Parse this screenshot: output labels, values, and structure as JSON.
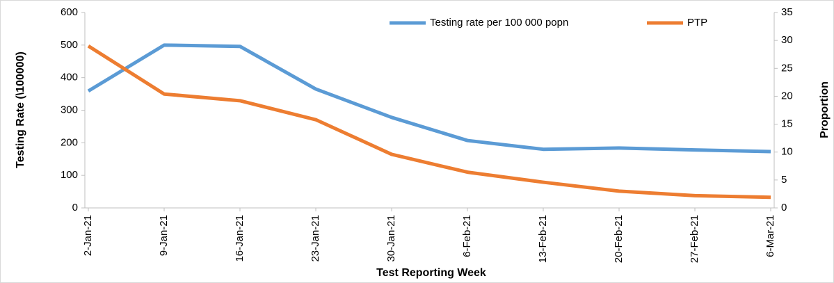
{
  "chart_data": {
    "type": "line",
    "x_label": "Test Reporting Week",
    "y_label": "Testing Rate (\\100000)",
    "y2_label": "Proportion",
    "categories": [
      "2-Jan-21",
      "9-Jan-21",
      "16-Jan-21",
      "23-Jan-21",
      "30-Jan-21",
      "6-Feb-21",
      "13-Feb-21",
      "20-Feb-21",
      "27-Feb-21",
      "6-Mar-21"
    ],
    "series": [
      {
        "name": "Testing rate per 100 000 popn",
        "color": "#5b9bd5",
        "values": [
          359,
          500,
          496,
          365,
          278,
          207,
          180,
          184,
          178,
          173
        ]
      },
      {
        "name": "PTP",
        "color": "#ed7d31",
        "axis": "y2",
        "values": [
          29.0,
          20.4,
          19.2,
          15.8,
          9.6,
          6.4,
          4.6,
          3.0,
          2.2,
          1.9
        ]
      }
    ],
    "ylim": [
      0,
      600
    ],
    "yticks": [
      0,
      100,
      200,
      300,
      400,
      500,
      600
    ],
    "y2lim": [
      0,
      35
    ],
    "y2ticks": [
      0,
      5,
      10,
      15,
      20,
      25,
      30,
      35
    ],
    "legend": "top-right"
  }
}
